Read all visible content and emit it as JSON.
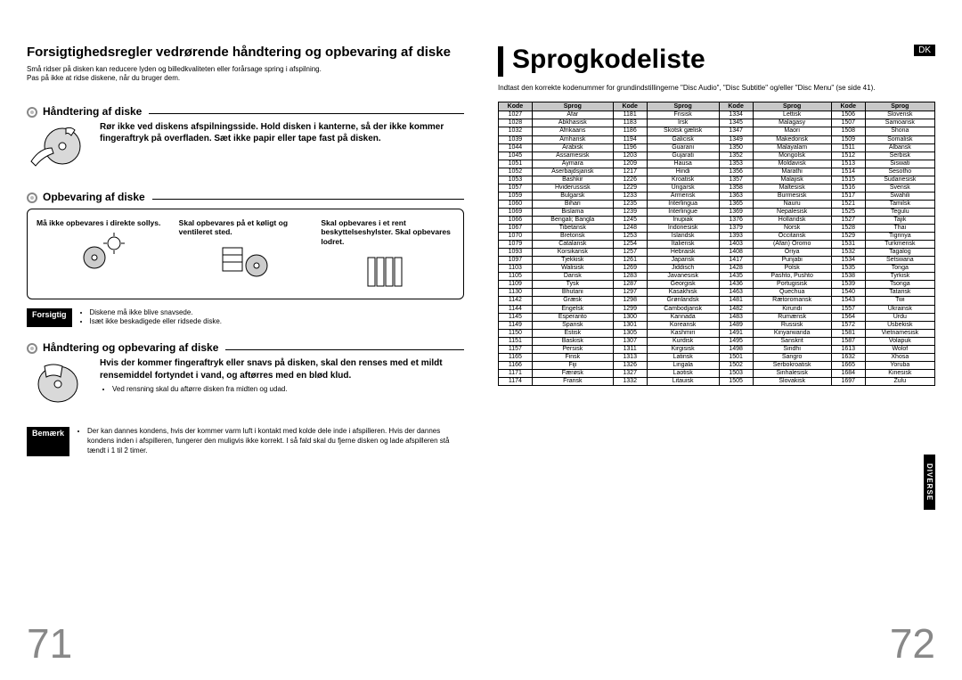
{
  "left": {
    "title": "Forsigtighedsregler vedrørende håndtering og opbevaring af diske",
    "intro1": "Små ridser på disken kan reducere lyden og billedkvaliteten eller forårsage spring i afspilning.",
    "intro2": "Pas på ikke at ridse diskene, når du bruger dem.",
    "sec1": "Håndtering af diske",
    "sec1_text": "Rør ikke ved diskens afspilningsside. Hold disken i kanterne, så der ikke kommer fingeraftryk på overfladen. Sæt ikke papir eller tape fast på disken.",
    "sec2": "Opbevaring af diske",
    "storage1_t": "Må ikke opbevares i direkte sollys.",
    "storage2_t": "Skal opbevares på et køligt og ventileret sted.",
    "storage3_t": "Skal opbevares i et rent beskyttelseshylster. Skal opbevares lodret.",
    "caution_label": "Forsigtig",
    "caution1": "Diskene må ikke blive snavsede.",
    "caution2": "Isæt ikke beskadigede eller ridsede diske.",
    "sec3": "Håndtering og opbevaring af diske",
    "sec3_text": "Hvis der kommer fingeraftryk eller snavs på disken, skal den renses med et mildt rensemiddel fortyndet i vand, og aftørres med en blød klud.",
    "sec3_sub": "Ved rensning skal du aftørre disken fra midten og udad.",
    "note_label": "Bemærk",
    "note_text": "Der kan dannes kondens, hvis der kommer varm luft i kontakt med kolde dele inde i afspilleren. Hvis der dannes kondens inden i afspilleren, fungerer den muligvis ikke korrekt. I så fald skal du fjerne disken og lade afspilleren stå tændt i 1 til 2 timer.",
    "page_num": "71"
  },
  "right": {
    "title": "Sprogkodeliste",
    "intro": "Indtast den korrekte kodenummer for grundindstillingerne \"Disc Audio\", \"Disc Subtitle\" og/eller \"Disc Menu\" (se side 41).",
    "lang_badge": "DK",
    "side_tab": "DIVERSE",
    "page_num": "72",
    "headers": [
      "Kode",
      "Sprog",
      "Kode",
      "Sprog",
      "Kode",
      "Sprog",
      "Kode",
      "Sprog"
    ],
    "rows": [
      [
        "1027",
        "Afar",
        "1181",
        "Frisisk",
        "1334",
        "Lettisk",
        "1506",
        "Slovensk"
      ],
      [
        "1028",
        "Abkhasisk",
        "1183",
        "Irsk",
        "1345",
        "Malagasy",
        "1507",
        "Samoansk"
      ],
      [
        "1032",
        "Afrikaans",
        "1186",
        "Skotsk gælisk",
        "1347",
        "Maori",
        "1508",
        "Shona"
      ],
      [
        "1039",
        "Amharisk",
        "1194",
        "Galicisk",
        "1349",
        "Makedonsk",
        "1509",
        "Somalisk"
      ],
      [
        "1044",
        "Arabisk",
        "1196",
        "Guarani",
        "1350",
        "Malayalam",
        "1511",
        "Albansk"
      ],
      [
        "1045",
        "Assamesisk",
        "1203",
        "Gujarati",
        "1352",
        "Mongolsk",
        "1512",
        "Serbisk"
      ],
      [
        "1051",
        "Aymara",
        "1209",
        "Hausa",
        "1353",
        "Moldavisk",
        "1513",
        "Siswati"
      ],
      [
        "1052",
        "Aserbajdsjansk",
        "1217",
        "Hindi",
        "1356",
        "Marathi",
        "1514",
        "Sesotho"
      ],
      [
        "1053",
        "Bashkir",
        "1226",
        "Kroatisk",
        "1357",
        "Malajisk",
        "1515",
        "Sudanesisk"
      ],
      [
        "1057",
        "Hviderussisk",
        "1229",
        "Ungarsk",
        "1358",
        "Maltesisk",
        "1516",
        "Svensk"
      ],
      [
        "1059",
        "Bulgarsk",
        "1233",
        "Armensk",
        "1363",
        "Burmesisk",
        "1517",
        "Swahili"
      ],
      [
        "1060",
        "Bihari",
        "1235",
        "Interlingua",
        "1365",
        "Nauru",
        "1521",
        "Tamilsk"
      ],
      [
        "1069",
        "Bislama",
        "1239",
        "Interlingue",
        "1369",
        "Nepalesisk",
        "1525",
        "Tegulu"
      ],
      [
        "1066",
        "Bengali; Bangla",
        "1245",
        "Inupiak",
        "1376",
        "Hollandsk",
        "1527",
        "Tajik"
      ],
      [
        "1067",
        "Tibetansk",
        "1248",
        "Indonesisk",
        "1379",
        "Norsk",
        "1528",
        "Thai"
      ],
      [
        "1070",
        "Bretonsk",
        "1253",
        "Islandsk",
        "1393",
        "Occitansk",
        "1529",
        "Tigrinya"
      ],
      [
        "1079",
        "Catalansk",
        "1254",
        "Italiensk",
        "1403",
        "(Afan) Oromo",
        "1531",
        "Turkmensk"
      ],
      [
        "1093",
        "Korsikansk",
        "1257",
        "Hebraisk",
        "1408",
        "Oriya",
        "1532",
        "Tagalog"
      ],
      [
        "1097",
        "Tjekkisk",
        "1261",
        "Japansk",
        "1417",
        "Punjabi",
        "1534",
        "Setswana"
      ],
      [
        "1103",
        "Walisisk",
        "1269",
        "Jiddisch",
        "1428",
        "Polsk",
        "1535",
        "Tonga"
      ],
      [
        "1105",
        "Dansk",
        "1283",
        "Javanesisk",
        "1435",
        "Pashto, Pushto",
        "1538",
        "Tyrkisk"
      ],
      [
        "1109",
        "Tysk",
        "1287",
        "Georgisk",
        "1436",
        "Portugisisk",
        "1539",
        "Tsonga"
      ],
      [
        "1130",
        "Bhutani",
        "1297",
        "Kasakhisk",
        "1463",
        "Quechua",
        "1540",
        "Tatarisk"
      ],
      [
        "1142",
        "Græsk",
        "1298",
        "Grønlandsk",
        "1481",
        "Rætoromansk",
        "1543",
        "Twi"
      ],
      [
        "1144",
        "Engelsk",
        "1299",
        "Cambodjansk",
        "1482",
        "Kirundi",
        "1557",
        "Ukrainsk"
      ],
      [
        "1145",
        "Esperanto",
        "1300",
        "Kannada",
        "1483",
        "Rumænsk",
        "1564",
        "Urdu"
      ],
      [
        "1149",
        "Spansk",
        "1301",
        "Koreansk",
        "1489",
        "Russisk",
        "1572",
        "Usbekisk"
      ],
      [
        "1150",
        "Estisk",
        "1305",
        "Kashmiri",
        "1491",
        "Kinyarwanda",
        "1581",
        "Vietnamesisk"
      ],
      [
        "1151",
        "Baskisk",
        "1307",
        "Kurdisk",
        "1495",
        "Sanskrit",
        "1587",
        "Volapuk"
      ],
      [
        "1157",
        "Persisk",
        "1311",
        "Kirgisisk",
        "1498",
        "Sindhi",
        "1613",
        "Wolof"
      ],
      [
        "1165",
        "Finsk",
        "1313",
        "Latinsk",
        "1501",
        "Sangro",
        "1632",
        "Xhosa"
      ],
      [
        "1166",
        "Fiji",
        "1326",
        "Lingala",
        "1502",
        "Serbokroatisk",
        "1665",
        "Yoruba"
      ],
      [
        "1171",
        "Færøsk",
        "1327",
        "Laotisk",
        "1503",
        "Sinhalesisk",
        "1684",
        "Kinesisk"
      ],
      [
        "1174",
        "Fransk",
        "1332",
        "Litauisk",
        "1505",
        "Slovakisk",
        "1697",
        "Zulu"
      ]
    ]
  }
}
